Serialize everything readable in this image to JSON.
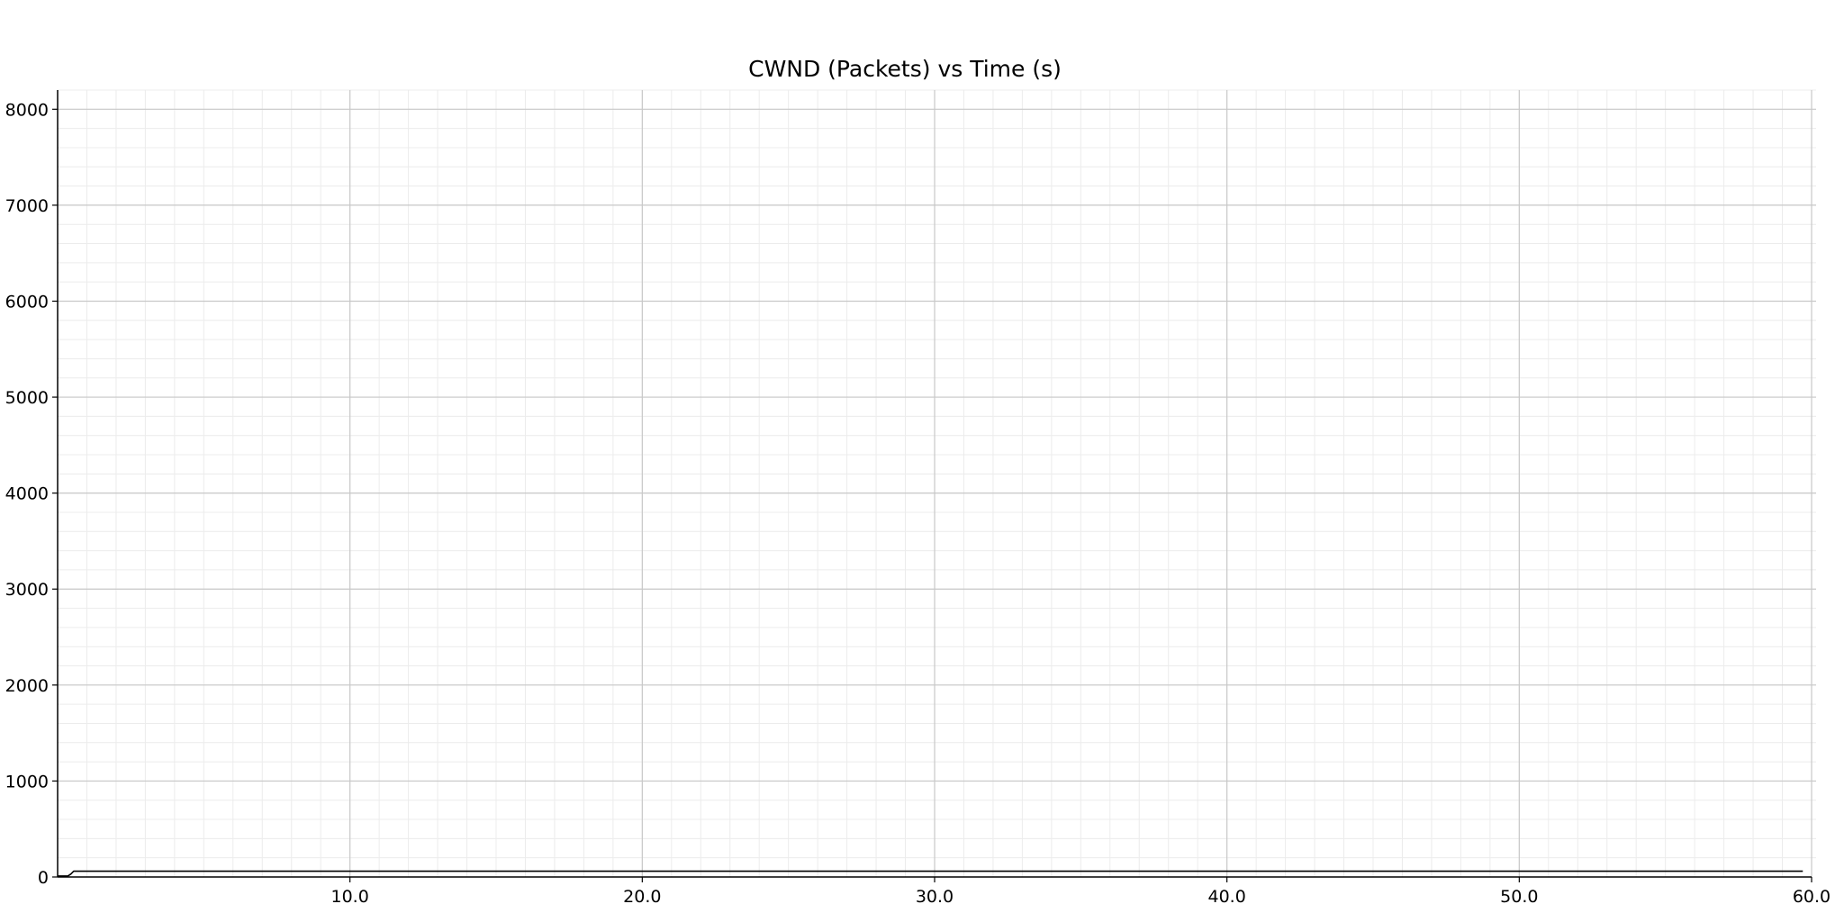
{
  "chart_data": {
    "type": "line",
    "title": "CWND (Packets) vs Time (s)",
    "xlabel": "",
    "ylabel": "",
    "xlim": [
      0.0,
      60.0
    ],
    "ylim": [
      0,
      8200
    ],
    "x_ticks": [
      {
        "value": 10,
        "label": "10.0"
      },
      {
        "value": 20,
        "label": "20.0"
      },
      {
        "value": 30,
        "label": "30.0"
      },
      {
        "value": 40,
        "label": "40.0"
      },
      {
        "value": 50,
        "label": "50.0"
      },
      {
        "value": 60,
        "label": "60.0"
      }
    ],
    "y_ticks": [
      {
        "value": 0,
        "label": "0"
      },
      {
        "value": 1000,
        "label": "1000"
      },
      {
        "value": 2000,
        "label": "2000"
      },
      {
        "value": 3000,
        "label": "3000"
      },
      {
        "value": 4000,
        "label": "4000"
      },
      {
        "value": 5000,
        "label": "5000"
      },
      {
        "value": 6000,
        "label": "6000"
      },
      {
        "value": 7000,
        "label": "7000"
      },
      {
        "value": 8000,
        "label": "8000"
      }
    ],
    "x_minor_step": 1,
    "y_minor_step": 200,
    "grid": true,
    "legend": "none",
    "series": [
      {
        "x": [
          0.0,
          0.35,
          0.45,
          0.55,
          0.6,
          1.0,
          5.0,
          10.0,
          20.0,
          30.0,
          40.0,
          50.0,
          59.7
        ],
        "values": [
          10,
          10,
          30,
          60,
          60,
          60,
          60,
          60,
          60,
          60,
          60,
          60,
          60
        ]
      }
    ],
    "colors": {
      "line": "#000000",
      "axis": "#000000",
      "major_grid": "#c8c8c8",
      "minor_grid": "#ececec"
    }
  }
}
